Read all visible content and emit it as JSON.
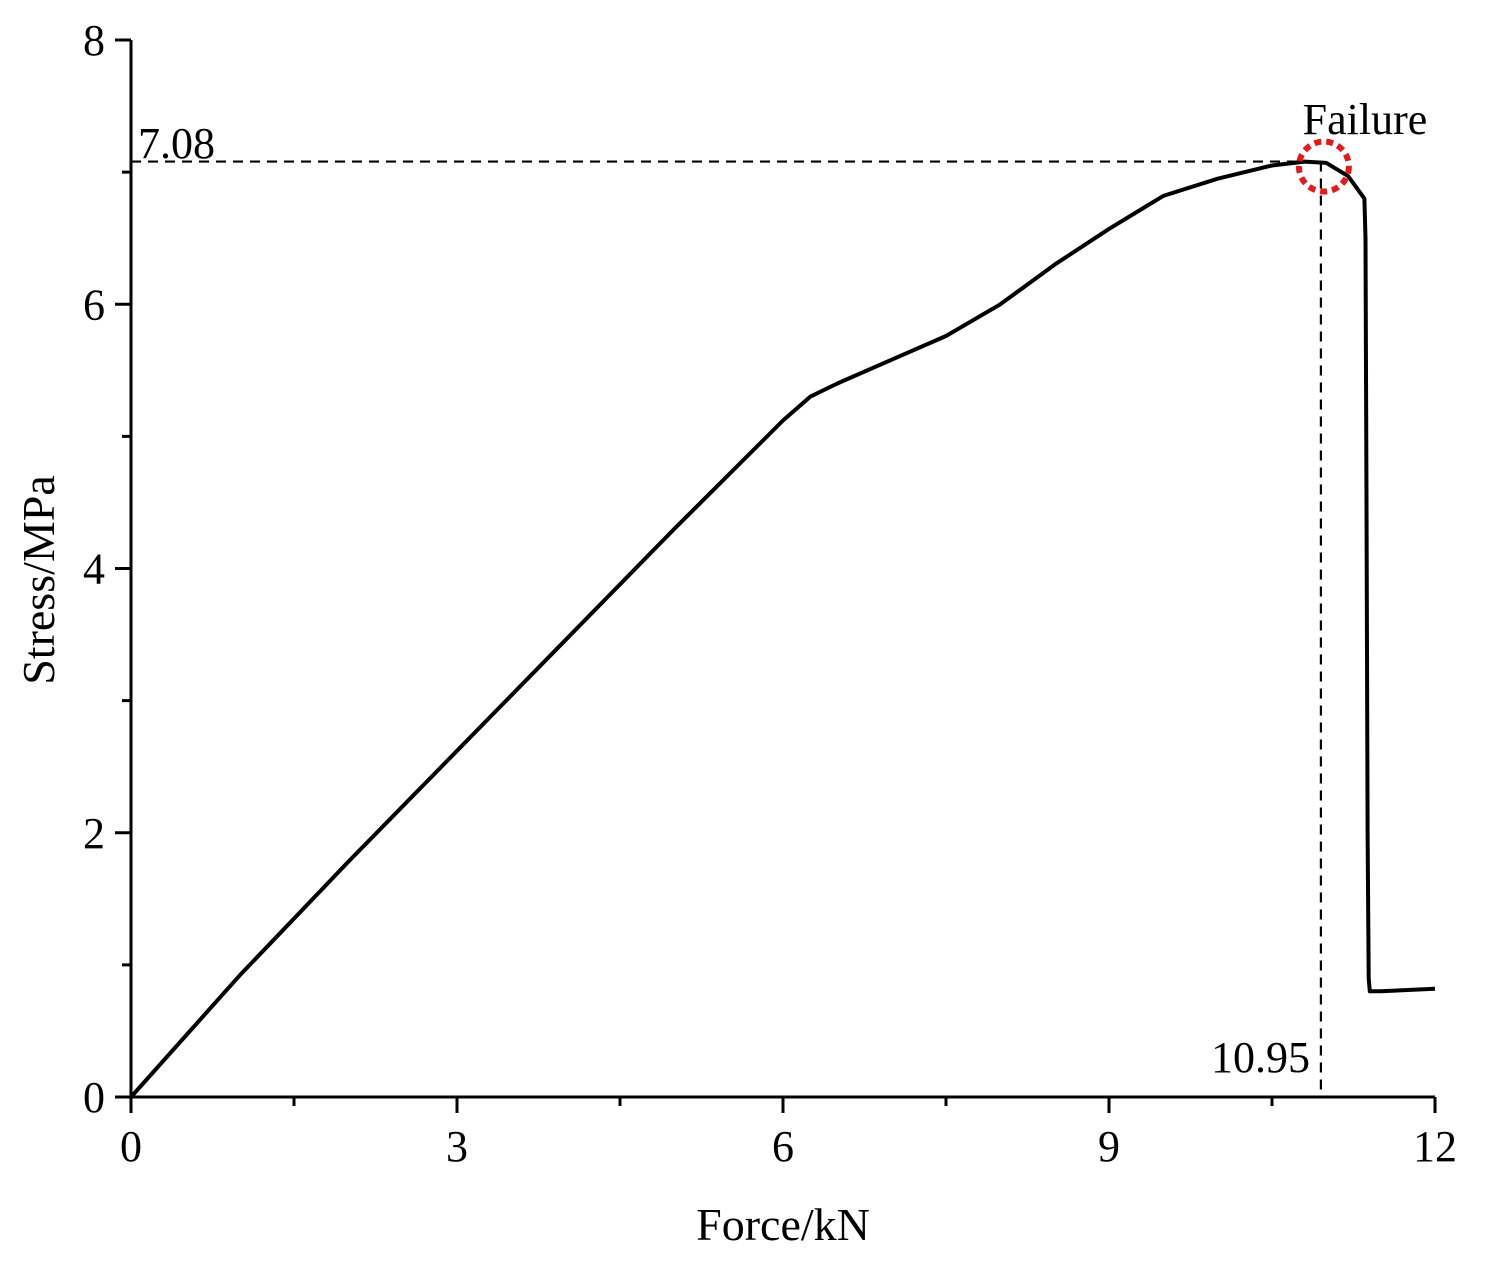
{
  "chart_data": {
    "type": "line",
    "xlabel": "Force/kN",
    "ylabel": "Stress/MPa",
    "xlim": [
      0,
      12
    ],
    "ylim": [
      0,
      8
    ],
    "x_ticks": [
      0,
      3,
      6,
      9,
      12
    ],
    "y_ticks": [
      0,
      2,
      4,
      6,
      8
    ],
    "x_minor_ticks": [
      1.5,
      4.5,
      7.5,
      10.5
    ],
    "y_minor_ticks": [
      1,
      3,
      5,
      7
    ],
    "grid": false,
    "series": [
      {
        "color": "#000000",
        "x": [
          0,
          1.0,
          2.0,
          3.0,
          4.0,
          5.0,
          6.0,
          6.25,
          6.5,
          7.0,
          7.5,
          8.0,
          8.5,
          9.0,
          9.5,
          10.0,
          10.5,
          10.8,
          11.0,
          11.2,
          11.35,
          11.36,
          11.37,
          11.38,
          11.39,
          11.4,
          11.5,
          12.0
        ],
        "y": [
          0,
          0.92,
          1.78,
          2.62,
          3.46,
          4.3,
          5.12,
          5.3,
          5.4,
          5.58,
          5.76,
          6.0,
          6.3,
          6.57,
          6.82,
          6.95,
          7.05,
          7.08,
          7.07,
          6.97,
          6.8,
          6.5,
          4.5,
          2.0,
          0.9,
          0.8,
          0.8,
          0.82
        ]
      }
    ],
    "annotations": {
      "peak_stress_label": "7.08",
      "peak_force_label": "10.95",
      "failure_label": "Failure",
      "peak_x": 10.95,
      "peak_y": 7.08,
      "marker_color": "#e31a1c"
    }
  }
}
